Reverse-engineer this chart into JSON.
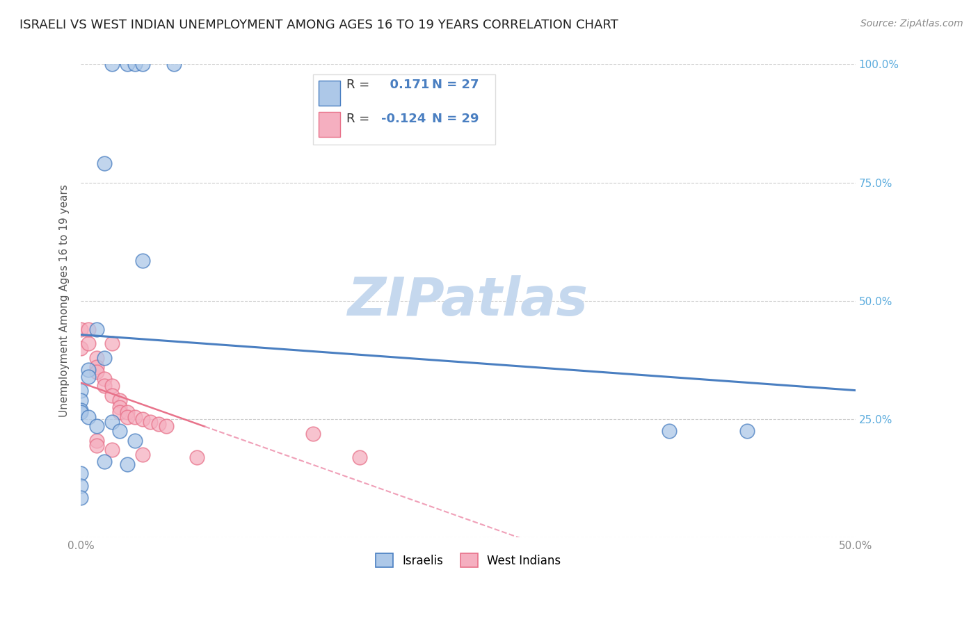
{
  "title": "ISRAELI VS WEST INDIAN UNEMPLOYMENT AMONG AGES 16 TO 19 YEARS CORRELATION CHART",
  "source": "Source: ZipAtlas.com",
  "ylabel": "Unemployment Among Ages 16 to 19 years",
  "xlim": [
    0.0,
    0.5
  ],
  "ylim": [
    0.0,
    1.0
  ],
  "xticks": [
    0.0,
    0.05,
    0.1,
    0.15,
    0.2,
    0.25,
    0.3,
    0.35,
    0.4,
    0.45,
    0.5
  ],
  "yticks": [
    0.0,
    0.25,
    0.5,
    0.75,
    1.0
  ],
  "israelis_x": [
    0.02,
    0.03,
    0.035,
    0.04,
    0.06,
    0.015,
    0.04,
    0.01,
    0.015,
    0.005,
    0.005,
    0.0,
    0.0,
    0.0,
    0.0,
    0.005,
    0.02,
    0.01,
    0.025,
    0.035,
    0.38,
    0.43,
    0.015,
    0.03,
    0.0,
    0.0,
    0.0
  ],
  "israelis_y": [
    1.0,
    1.0,
    1.0,
    1.0,
    1.0,
    0.79,
    0.585,
    0.44,
    0.38,
    0.355,
    0.34,
    0.31,
    0.29,
    0.27,
    0.265,
    0.255,
    0.245,
    0.235,
    0.225,
    0.205,
    0.225,
    0.225,
    0.16,
    0.155,
    0.135,
    0.11,
    0.085
  ],
  "west_indians_x": [
    0.0,
    0.0,
    0.005,
    0.01,
    0.01,
    0.01,
    0.015,
    0.015,
    0.02,
    0.02,
    0.025,
    0.025,
    0.025,
    0.03,
    0.03,
    0.035,
    0.04,
    0.045,
    0.05,
    0.055,
    0.005,
    0.02,
    0.01,
    0.01,
    0.02,
    0.04,
    0.075,
    0.15,
    0.18
  ],
  "west_indians_y": [
    0.44,
    0.4,
    0.41,
    0.38,
    0.36,
    0.35,
    0.335,
    0.32,
    0.32,
    0.3,
    0.29,
    0.275,
    0.265,
    0.265,
    0.255,
    0.255,
    0.25,
    0.245,
    0.24,
    0.235,
    0.44,
    0.41,
    0.205,
    0.195,
    0.185,
    0.175,
    0.17,
    0.22,
    0.17
  ],
  "R_israeli": 0.171,
  "N_israeli": 27,
  "R_west_indian": -0.124,
  "N_west_indian": 29,
  "israeli_color": "#adc8e8",
  "west_indian_color": "#f5afc0",
  "israeli_line_color": "#4a7fc1",
  "west_indian_line_color": "#e8728a",
  "west_indian_dash_color": "#f0a0b8",
  "background_color": "#ffffff",
  "watermark": "ZIPatlas",
  "watermark_color": "#c5d8ee"
}
